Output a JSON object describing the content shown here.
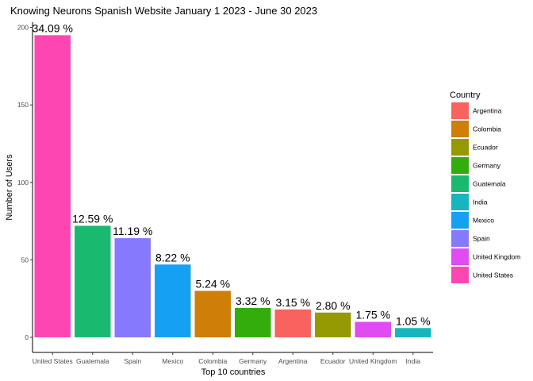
{
  "chart_data": {
    "type": "bar",
    "title": "Knowing Neurons Spanish Website January 1 2023 - June 30 2023",
    "xlabel": "Top 10 countries",
    "ylabel": "Number of Users",
    "ylim": [
      0,
      205
    ],
    "yticks": [
      0,
      50,
      100,
      150,
      200
    ],
    "grid": false,
    "categories": [
      "United States",
      "Guatemala",
      "Spain",
      "Mexico",
      "Colombia",
      "Germany",
      "Argentina",
      "Ecuador",
      "United Kingdom",
      "India"
    ],
    "values": [
      195,
      72,
      64,
      47,
      30,
      19,
      18,
      16,
      10,
      6
    ],
    "data_labels": [
      "34.09 %",
      "12.59 %",
      "11.19 %",
      "8.22 %",
      "5.24 %",
      "3.32 %",
      "3.15 %",
      "2.80 %",
      "1.75 %",
      "1.05 %"
    ],
    "legend": {
      "title": "Country",
      "placement": "right",
      "entries": [
        {
          "label": "Argentina",
          "color": "#F8766D"
        },
        {
          "label": "Colombia",
          "color": "#D39200"
        },
        {
          "label": "Ecuador",
          "color": "#93AA00"
        },
        {
          "label": "Germany",
          "color": "#00BA38"
        },
        {
          "label": "Guatemala",
          "color": "#00C19F"
        },
        {
          "label": "India",
          "color": "#00B9E3"
        },
        {
          "label": "Mexico",
          "color": "#619CFF"
        },
        {
          "label": "Spain",
          "color": "#DB72FB"
        },
        {
          "label": "United Kingdom",
          "color": "#F564E3"
        },
        {
          "label": "United States",
          "color": "#FF61C3"
        }
      ]
    },
    "legend_colors_rendered": {
      "Argentina": "#F8635F",
      "Colombia": "#CF7F07",
      "Ecuador": "#959A02",
      "Germany": "#32AD0B",
      "Guatemala": "#19BA70",
      "India": "#17B5BD",
      "Mexico": "#16A0F4",
      "Spain": "#8679FE",
      "United Kingdom": "#E04CF2",
      "United States": "#FE46B2"
    }
  }
}
